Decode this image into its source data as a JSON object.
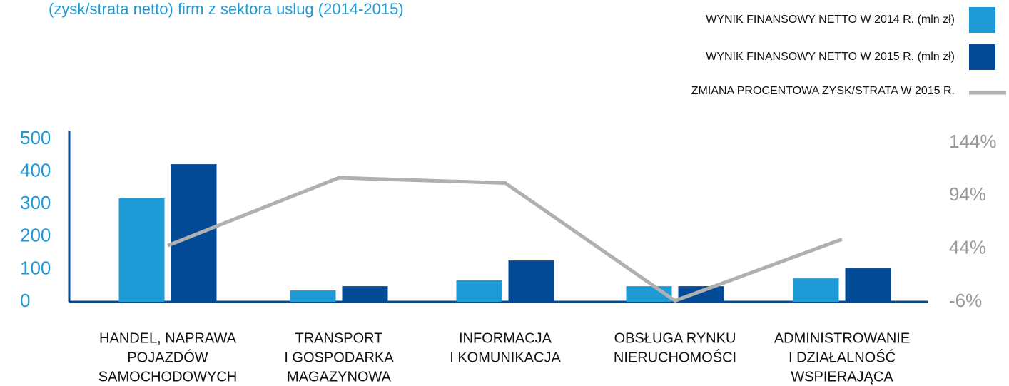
{
  "chart_data": {
    "type": "bar-line",
    "title": "(zysk/strata netto) firm z sektora uslug (2014-2015)",
    "categories": [
      [
        "HANDEL, NAPRAWA",
        "POJAZDÓW",
        "SAMOCHODOWYCH"
      ],
      [
        "TRANSPORT",
        "I GOSPODARKA",
        "MAGAZYNOWA"
      ],
      [
        "INFORMACJA",
        "I KOMUNIKACJA"
      ],
      [
        "OBSŁUGA RYNKU",
        "NIERUCHOMOŚCI"
      ],
      [
        "ADMINISTROWANIE",
        "I DZIAŁALNOŚĆ",
        "WSPIERAJĄCA"
      ]
    ],
    "series": [
      {
        "name": "WYNIK FINANSOWY NETTO W 2014 R. (mln zł)",
        "color": "#1e9ad6",
        "type": "bar",
        "values": [
          318,
          35,
          66,
          48,
          72
        ]
      },
      {
        "name": "WYNIK FINANSOWY NETTO W 2015 R. (mln zł)",
        "color": "#034a96",
        "type": "bar",
        "values": [
          423,
          48,
          127,
          48,
          103
        ]
      },
      {
        "name": "ZMIANA PROCENTOWA ZYSK/STRATA W 2015 R.",
        "color": "#b0b0b0",
        "type": "line",
        "axis": "y2",
        "values": [
          47,
          111,
          106,
          -5,
          53
        ]
      }
    ],
    "ylim": [
      0,
      500
    ],
    "yticks": [
      0,
      100,
      200,
      300,
      400,
      500
    ],
    "y2lim": [
      -6,
      144
    ],
    "y2ticks": [
      {
        "value": -6,
        "label": "-6%"
      },
      {
        "value": 44,
        "label": "44%"
      },
      {
        "value": 94,
        "label": "94%"
      },
      {
        "value": 144,
        "label": "144%"
      }
    ]
  }
}
